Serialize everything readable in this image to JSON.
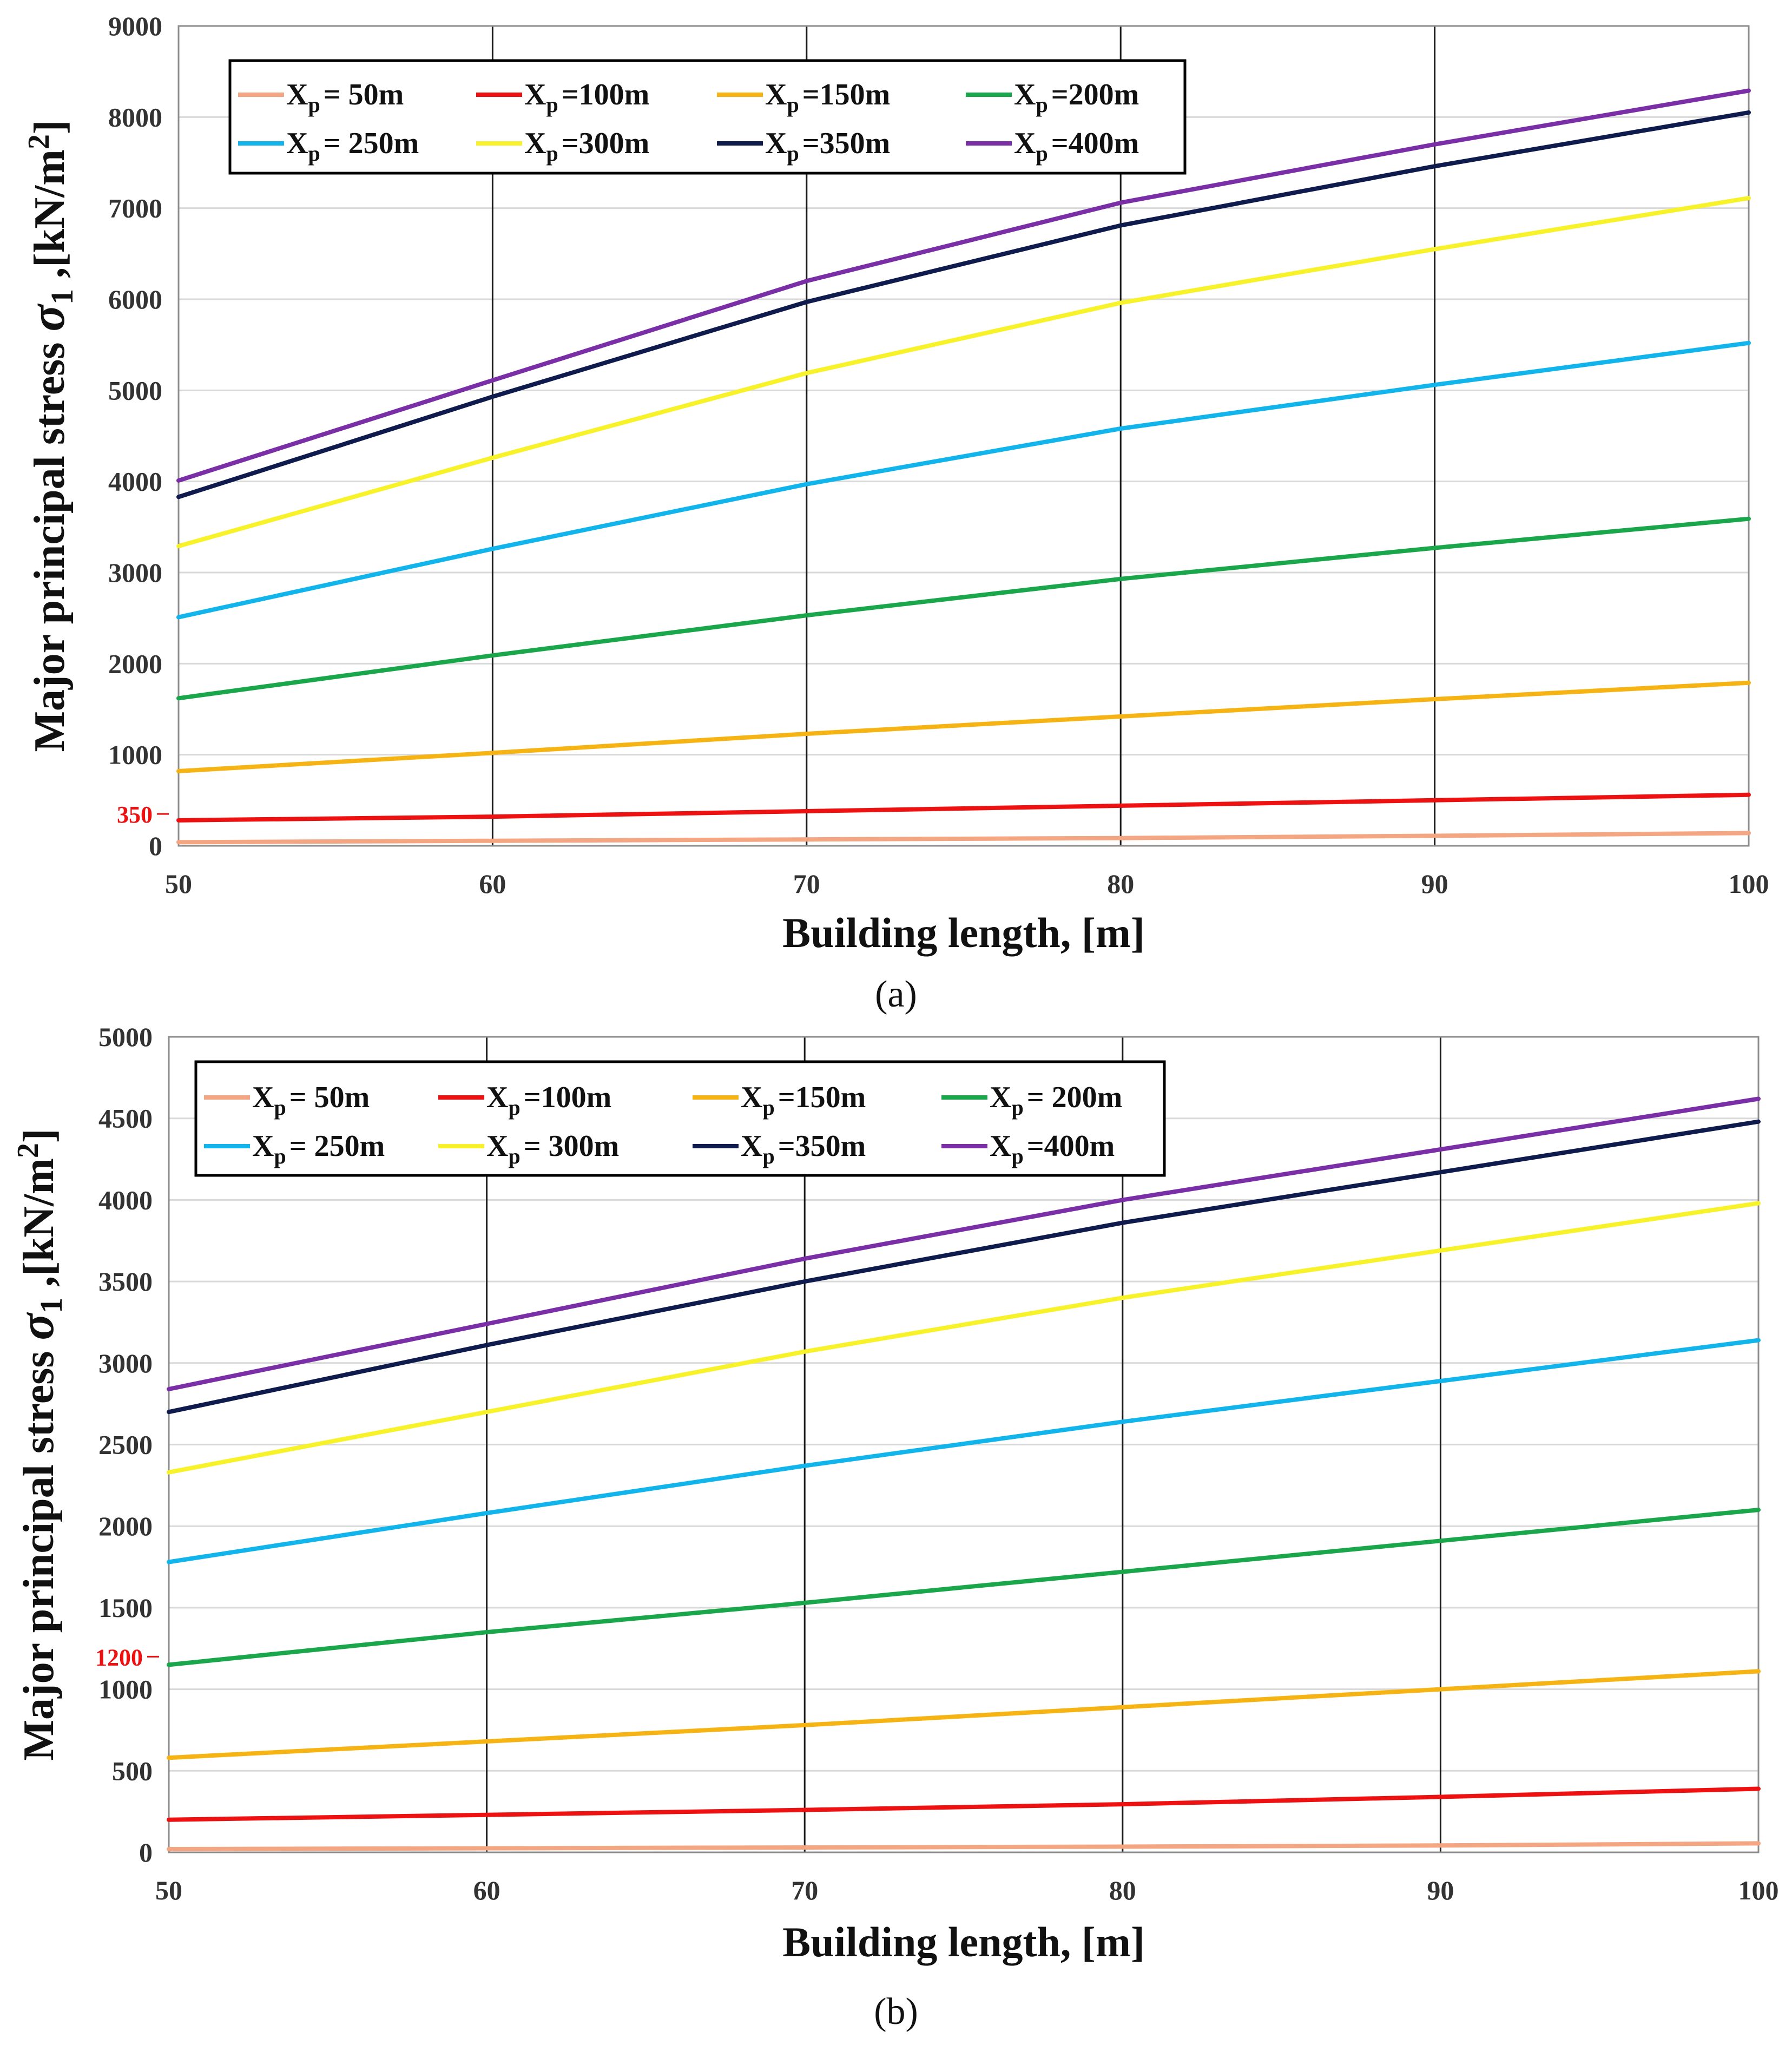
{
  "chart_data": [
    {
      "type": "line",
      "caption": "(a)",
      "xlabel": "Building length, [m]",
      "ylabel": "Major principal stress σ1 ,[kN/m2]",
      "ylabel_main": "Major principal stress ",
      "ylabel_sym": "σ",
      "ylabel_symsub": "1",
      "ylabel_unit": " ,[kN/m",
      "ylabel_unitsup": "2",
      "ylabel_close": "]",
      "xlim": [
        50,
        100
      ],
      "ylim": [
        0,
        9000
      ],
      "xticks": [
        "50",
        "60",
        "70",
        "80",
        "90",
        "100"
      ],
      "yticks": [
        "0",
        "1000",
        "2000",
        "3000",
        "4000",
        "5000",
        "6000",
        "7000",
        "8000",
        "9000"
      ],
      "marker": {
        "label": "350",
        "value": 350
      },
      "x": [
        50,
        60,
        70,
        80,
        90,
        100
      ],
      "series": [
        {
          "name": "Xp = 50m",
          "prefix": "X",
          "sub": "p",
          "suffix": "= 50m",
          "color": "#f4a582",
          "values": [
            40,
            55,
            70,
            85,
            110,
            140
          ]
        },
        {
          "name": "Xp =100m",
          "prefix": "X",
          "sub": "p",
          "suffix": "=100m",
          "color": "#ee1111",
          "values": [
            280,
            320,
            380,
            440,
            500,
            560
          ]
        },
        {
          "name": "Xp =150m",
          "prefix": "X",
          "sub": "p",
          "suffix": "=150m",
          "color": "#f5b414",
          "values": [
            820,
            1020,
            1230,
            1420,
            1610,
            1790
          ]
        },
        {
          "name": "Xp =200m",
          "prefix": "X",
          "sub": "p",
          "suffix": "=200m",
          "color": "#1aa64a",
          "values": [
            1620,
            2090,
            2530,
            2930,
            3270,
            3590
          ]
        },
        {
          "name": "Xp = 250m",
          "prefix": "X",
          "sub": "p",
          "suffix": "= 250m",
          "color": "#11b5ec",
          "values": [
            2510,
            3260,
            3970,
            4580,
            5060,
            5520
          ]
        },
        {
          "name": "Xp =300m",
          "prefix": "X",
          "sub": "p",
          "suffix": "=300m",
          "color": "#f7f22a",
          "values": [
            3290,
            4260,
            5190,
            5960,
            6550,
            7110
          ]
        },
        {
          "name": "Xp =350m",
          "prefix": "X",
          "sub": "p",
          "suffix": "=350m",
          "color": "#0f1a4d",
          "values": [
            3830,
            4930,
            5970,
            6810,
            7460,
            8050
          ]
        },
        {
          "name": "Xp =400m",
          "prefix": "X",
          "sub": "p",
          "suffix": "=400m",
          "color": "#7a2fa6",
          "values": [
            4010,
            5110,
            6200,
            7060,
            7700,
            8290
          ]
        }
      ]
    },
    {
      "type": "line",
      "caption": "(b)",
      "xlabel": "Building length, [m]",
      "ylabel": "Major principal stress σ1 ,[kN/m2]",
      "ylabel_main": "Major principal stress ",
      "ylabel_sym": "σ",
      "ylabel_symsub": "1",
      "ylabel_unit": " ,[kN/m",
      "ylabel_unitsup": "2",
      "ylabel_close": "]",
      "xlim": [
        50,
        100
      ],
      "ylim": [
        0,
        5000
      ],
      "xticks": [
        "50",
        "60",
        "70",
        "80",
        "90",
        "100"
      ],
      "yticks": [
        "0",
        "500",
        "1000",
        "1500",
        "2000",
        "2500",
        "3000",
        "3500",
        "4000",
        "4500",
        "5000"
      ],
      "marker": {
        "label": "1200",
        "value": 1200
      },
      "x": [
        50,
        60,
        70,
        80,
        90,
        100
      ],
      "series": [
        {
          "name": "Xp = 50m",
          "prefix": "X",
          "sub": "p",
          "suffix": "= 50m",
          "color": "#f4a582",
          "values": [
            20,
            25,
            30,
            35,
            42,
            55
          ]
        },
        {
          "name": "Xp =100m",
          "prefix": "X",
          "sub": "p",
          "suffix": "=100m",
          "color": "#ee1111",
          "values": [
            200,
            230,
            260,
            295,
            340,
            390
          ]
        },
        {
          "name": "Xp =150m",
          "prefix": "X",
          "sub": "p",
          "suffix": "=150m",
          "color": "#f5b414",
          "values": [
            580,
            680,
            780,
            890,
            1000,
            1110
          ]
        },
        {
          "name": "Xp = 200m",
          "prefix": "X",
          "sub": "p",
          "suffix": "= 200m",
          "color": "#1aa64a",
          "values": [
            1150,
            1350,
            1530,
            1720,
            1910,
            2100
          ]
        },
        {
          "name": "Xp = 250m",
          "prefix": "X",
          "sub": "p",
          "suffix": "= 250m",
          "color": "#11b5ec",
          "values": [
            1780,
            2080,
            2370,
            2640,
            2890,
            3140
          ]
        },
        {
          "name": "Xp = 300m",
          "prefix": "X",
          "sub": "p",
          "suffix": "= 300m",
          "color": "#f7f22a",
          "values": [
            2330,
            2700,
            3070,
            3400,
            3690,
            3980
          ]
        },
        {
          "name": "Xp =350m",
          "prefix": "X",
          "sub": "p",
          "suffix": "=350m",
          "color": "#0f1a4d",
          "values": [
            2700,
            3110,
            3500,
            3860,
            4170,
            4480
          ]
        },
        {
          "name": "Xp =400m",
          "prefix": "X",
          "sub": "p",
          "suffix": "=400m",
          "color": "#7a2fa6",
          "values": [
            2840,
            3240,
            3640,
            4000,
            4310,
            4620
          ]
        }
      ]
    }
  ]
}
